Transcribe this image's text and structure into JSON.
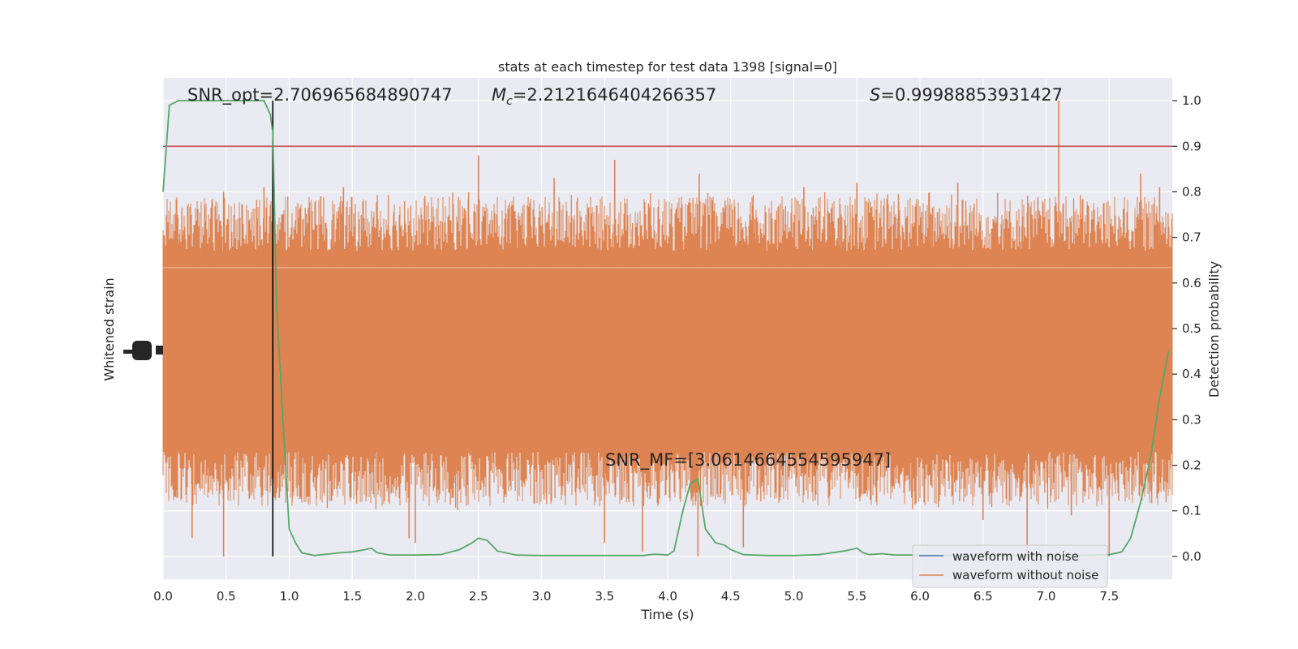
{
  "chart_data": {
    "type": "line",
    "title": "stats at each timestep for test data 1398 [signal=0]",
    "xlabel": "Time (s)",
    "ylabel_left": "Whitened strain",
    "ylabel_right": "Detection probability",
    "xlim": [
      0.0,
      8.0
    ],
    "ylim_right": [
      -0.05,
      1.05
    ],
    "x_ticks": [
      "0.0",
      "0.5",
      "1.0",
      "1.5",
      "2.0",
      "2.5",
      "3.0",
      "3.5",
      "4.0",
      "4.5",
      "5.0",
      "5.5",
      "6.0",
      "6.5",
      "7.0",
      "7.5"
    ],
    "x_tick_values": [
      0.0,
      0.5,
      1.0,
      1.5,
      2.0,
      2.5,
      3.0,
      3.5,
      4.0,
      4.5,
      5.0,
      5.5,
      6.0,
      6.5,
      7.0,
      7.5
    ],
    "y_ticks_right": [
      "0.0",
      "0.1",
      "0.2",
      "0.3",
      "0.4",
      "0.5",
      "0.6",
      "0.7",
      "0.8",
      "0.9",
      "1.0"
    ],
    "y_tick_values_right": [
      0.0,
      0.1,
      0.2,
      0.3,
      0.4,
      0.5,
      0.6,
      0.7,
      0.8,
      0.9,
      1.0
    ],
    "annotations": {
      "snr_opt": "SNR_opt=2.706965684890747",
      "mc_symbol": "M",
      "mc_sub": "c",
      "mc_value": "=2.2121646404266357",
      "s_symbol": "S",
      "s_value": "=0.99988853931427",
      "snr_mf": "SNR_MF=[3.0614664554595947]"
    },
    "threshold": 0.9,
    "event_time": 0.87,
    "series": [
      {
        "name": "waveform with noise",
        "color": "#4c72b0"
      },
      {
        "name": "waveform without noise",
        "color": "#dd8452"
      }
    ],
    "strain_band_probability_scale": {
      "core_low": 0.3,
      "core_high": 0.6,
      "spike_low_min": 0.0,
      "spike_high_max": 1.0
    },
    "strain_spikes": [
      {
        "t": 0.8,
        "high": 0.81
      },
      {
        "t": 0.33,
        "high": 0.77
      },
      {
        "t": 0.48,
        "high": 0.8
      },
      {
        "t": 1.25,
        "high": 0.79
      },
      {
        "t": 1.43,
        "high": 0.81
      },
      {
        "t": 2.5,
        "high": 0.88
      },
      {
        "t": 3.1,
        "high": 0.83
      },
      {
        "t": 3.58,
        "high": 0.87
      },
      {
        "t": 4.25,
        "high": 0.84
      },
      {
        "t": 5.08,
        "high": 0.81
      },
      {
        "t": 5.5,
        "high": 0.82
      },
      {
        "t": 6.3,
        "high": 0.82
      },
      {
        "t": 7.1,
        "high": 1.0
      },
      {
        "t": 7.75,
        "high": 0.84
      },
      {
        "t": 7.9,
        "high": 0.81
      },
      {
        "t": 0.48,
        "low": 0.0
      },
      {
        "t": 0.23,
        "low": 0.04
      },
      {
        "t": 1.95,
        "low": 0.04
      },
      {
        "t": 2.0,
        "low": 0.03
      },
      {
        "t": 3.5,
        "low": 0.03
      },
      {
        "t": 3.8,
        "low": 0.01
      },
      {
        "t": 4.24,
        "low": 0.0
      },
      {
        "t": 4.6,
        "low": 0.02
      },
      {
        "t": 6.85,
        "low": 0.0
      },
      {
        "t": 7.5,
        "low": 0.0
      },
      {
        "t": 7.2,
        "low": 0.09
      },
      {
        "t": 6.5,
        "low": 0.08
      }
    ],
    "detection_probability": {
      "x": [
        0.0,
        0.05,
        0.12,
        0.2,
        0.4,
        0.6,
        0.8,
        0.85,
        0.87,
        0.9,
        0.95,
        1.0,
        1.05,
        1.1,
        1.2,
        1.3,
        1.4,
        1.5,
        1.6,
        1.65,
        1.7,
        1.8,
        2.0,
        2.2,
        2.35,
        2.45,
        2.5,
        2.57,
        2.65,
        2.8,
        3.0,
        3.2,
        3.5,
        3.8,
        3.9,
        4.0,
        4.05,
        4.12,
        4.18,
        4.24,
        4.3,
        4.38,
        4.45,
        4.5,
        4.6,
        4.8,
        5.0,
        5.2,
        5.4,
        5.5,
        5.55,
        5.6,
        5.7,
        5.8,
        6.0,
        6.3,
        6.6,
        6.9,
        7.2,
        7.5,
        7.6,
        7.67,
        7.75,
        7.83,
        7.9,
        7.97
      ],
      "y": [
        0.8,
        0.99,
        1.0,
        1.0,
        1.0,
        1.0,
        1.0,
        0.97,
        0.93,
        0.55,
        0.3,
        0.06,
        0.03,
        0.008,
        0.002,
        0.005,
        0.008,
        0.01,
        0.015,
        0.018,
        0.008,
        0.003,
        0.003,
        0.004,
        0.015,
        0.03,
        0.04,
        0.035,
        0.012,
        0.003,
        0.002,
        0.002,
        0.002,
        0.002,
        0.005,
        0.003,
        0.012,
        0.1,
        0.16,
        0.17,
        0.06,
        0.03,
        0.025,
        0.015,
        0.004,
        0.002,
        0.002,
        0.004,
        0.012,
        0.018,
        0.008,
        0.004,
        0.006,
        0.003,
        0.003,
        0.002,
        0.002,
        0.002,
        0.002,
        0.004,
        0.01,
        0.04,
        0.12,
        0.22,
        0.35,
        0.45
      ]
    }
  }
}
